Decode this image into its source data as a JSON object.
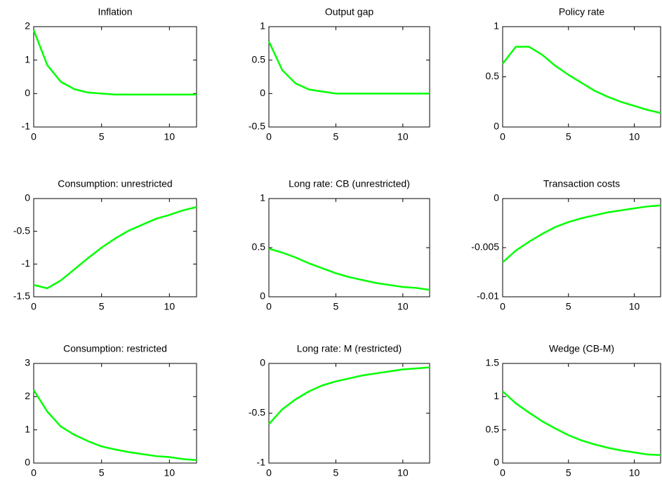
{
  "chart_data": [
    {
      "type": "line",
      "title": "Inflation",
      "x": [
        0,
        1,
        2,
        3,
        4,
        5,
        6,
        7,
        8,
        9,
        10,
        11,
        12
      ],
      "values": [
        1.9,
        0.85,
        0.35,
        0.13,
        0.03,
        0,
        -0.03,
        -0.03,
        -0.03,
        -0.03,
        -0.03,
        -0.03,
        -0.03
      ],
      "color": "#00ff00",
      "xlim": [
        0,
        12
      ],
      "xticks": [
        0,
        5,
        10
      ],
      "ylim": [
        -1,
        2
      ],
      "yticks": [
        -1,
        0,
        1,
        2
      ]
    },
    {
      "type": "line",
      "title": "Output gap",
      "x": [
        0,
        1,
        2,
        3,
        4,
        5,
        6,
        7,
        8,
        9,
        10,
        11,
        12
      ],
      "values": [
        0.78,
        0.35,
        0.15,
        0.06,
        0.03,
        0,
        0,
        0,
        0,
        0,
        0,
        0,
        0
      ],
      "color": "#00ff00",
      "xlim": [
        0,
        12
      ],
      "xticks": [
        0,
        5,
        10
      ],
      "ylim": [
        -0.5,
        1
      ],
      "yticks": [
        -0.5,
        0,
        0.5,
        1
      ]
    },
    {
      "type": "line",
      "title": "Policy rate",
      "x": [
        0,
        1,
        2,
        3,
        4,
        5,
        6,
        7,
        8,
        9,
        10,
        11,
        12
      ],
      "values": [
        0.63,
        0.8,
        0.8,
        0.72,
        0.61,
        0.52,
        0.44,
        0.36,
        0.3,
        0.25,
        0.21,
        0.17,
        0.14
      ],
      "color": "#00ff00",
      "xlim": [
        0,
        12
      ],
      "xticks": [
        0,
        5,
        10
      ],
      "ylim": [
        0,
        1
      ],
      "yticks": [
        0,
        0.5,
        1
      ]
    },
    {
      "type": "line",
      "title": "Consumption: unrestricted",
      "x": [
        0,
        1,
        2,
        3,
        4,
        5,
        6,
        7,
        8,
        9,
        10,
        11,
        12
      ],
      "values": [
        -1.32,
        -1.37,
        -1.25,
        -1.08,
        -0.91,
        -0.75,
        -0.61,
        -0.49,
        -0.4,
        -0.31,
        -0.25,
        -0.18,
        -0.13
      ],
      "color": "#00ff00",
      "xlim": [
        0,
        12
      ],
      "xticks": [
        0,
        5,
        10
      ],
      "ylim": [
        -1.5,
        0
      ],
      "yticks": [
        -1.5,
        -1,
        -0.5,
        0
      ]
    },
    {
      "type": "line",
      "title": "Long rate: CB (unrestricted)",
      "x": [
        0,
        1,
        2,
        3,
        4,
        5,
        6,
        7,
        8,
        9,
        10,
        11,
        12
      ],
      "values": [
        0.49,
        0.45,
        0.4,
        0.34,
        0.29,
        0.24,
        0.2,
        0.17,
        0.14,
        0.12,
        0.1,
        0.09,
        0.07
      ],
      "color": "#00ff00",
      "xlim": [
        0,
        12
      ],
      "xticks": [
        0,
        5,
        10
      ],
      "ylim": [
        0,
        1
      ],
      "yticks": [
        0,
        0.5,
        1
      ]
    },
    {
      "type": "line",
      "title": "Transaction costs",
      "x": [
        0,
        1,
        2,
        3,
        4,
        5,
        6,
        7,
        8,
        9,
        10,
        11,
        12
      ],
      "values": [
        -0.0065,
        -0.0053,
        -0.0044,
        -0.0036,
        -0.0029,
        -0.0024,
        -0.002,
        -0.0017,
        -0.0014,
        -0.0012,
        -0.001,
        -0.0008,
        -0.0007
      ],
      "color": "#00ff00",
      "xlim": [
        0,
        12
      ],
      "xticks": [
        0,
        5,
        10
      ],
      "ylim": [
        -0.01,
        0
      ],
      "yticks": [
        -0.01,
        -0.005,
        0
      ]
    },
    {
      "type": "line",
      "title": "Consumption: restricted",
      "x": [
        0,
        1,
        2,
        3,
        4,
        5,
        6,
        7,
        8,
        9,
        10,
        11,
        12
      ],
      "values": [
        2.2,
        1.55,
        1.1,
        0.85,
        0.66,
        0.5,
        0.41,
        0.33,
        0.27,
        0.21,
        0.18,
        0.12,
        0.09
      ],
      "color": "#00ff00",
      "xlim": [
        0,
        12
      ],
      "xticks": [
        0,
        5,
        10
      ],
      "ylim": [
        0,
        3
      ],
      "yticks": [
        0,
        1,
        2,
        3
      ]
    },
    {
      "type": "line",
      "title": "Long rate: M (restricted)",
      "x": [
        0,
        1,
        2,
        3,
        4,
        5,
        6,
        7,
        8,
        9,
        10,
        11,
        12
      ],
      "values": [
        -0.61,
        -0.46,
        -0.36,
        -0.28,
        -0.22,
        -0.18,
        -0.15,
        -0.12,
        -0.1,
        -0.08,
        -0.06,
        -0.05,
        -0.04
      ],
      "color": "#00ff00",
      "xlim": [
        0,
        12
      ],
      "xticks": [
        0,
        5,
        10
      ],
      "ylim": [
        -1,
        0
      ],
      "yticks": [
        -1,
        -0.5,
        0
      ]
    },
    {
      "type": "line",
      "title": "Wedge (CB-M)",
      "x": [
        0,
        1,
        2,
        3,
        4,
        5,
        6,
        7,
        8,
        9,
        10,
        11,
        12
      ],
      "values": [
        1.08,
        0.9,
        0.76,
        0.63,
        0.52,
        0.42,
        0.34,
        0.28,
        0.23,
        0.19,
        0.16,
        0.13,
        0.12
      ],
      "color": "#00ff00",
      "xlim": [
        0,
        12
      ],
      "xticks": [
        0,
        5,
        10
      ],
      "ylim": [
        0,
        1.5
      ],
      "yticks": [
        0,
        0.5,
        1,
        1.5
      ]
    }
  ]
}
